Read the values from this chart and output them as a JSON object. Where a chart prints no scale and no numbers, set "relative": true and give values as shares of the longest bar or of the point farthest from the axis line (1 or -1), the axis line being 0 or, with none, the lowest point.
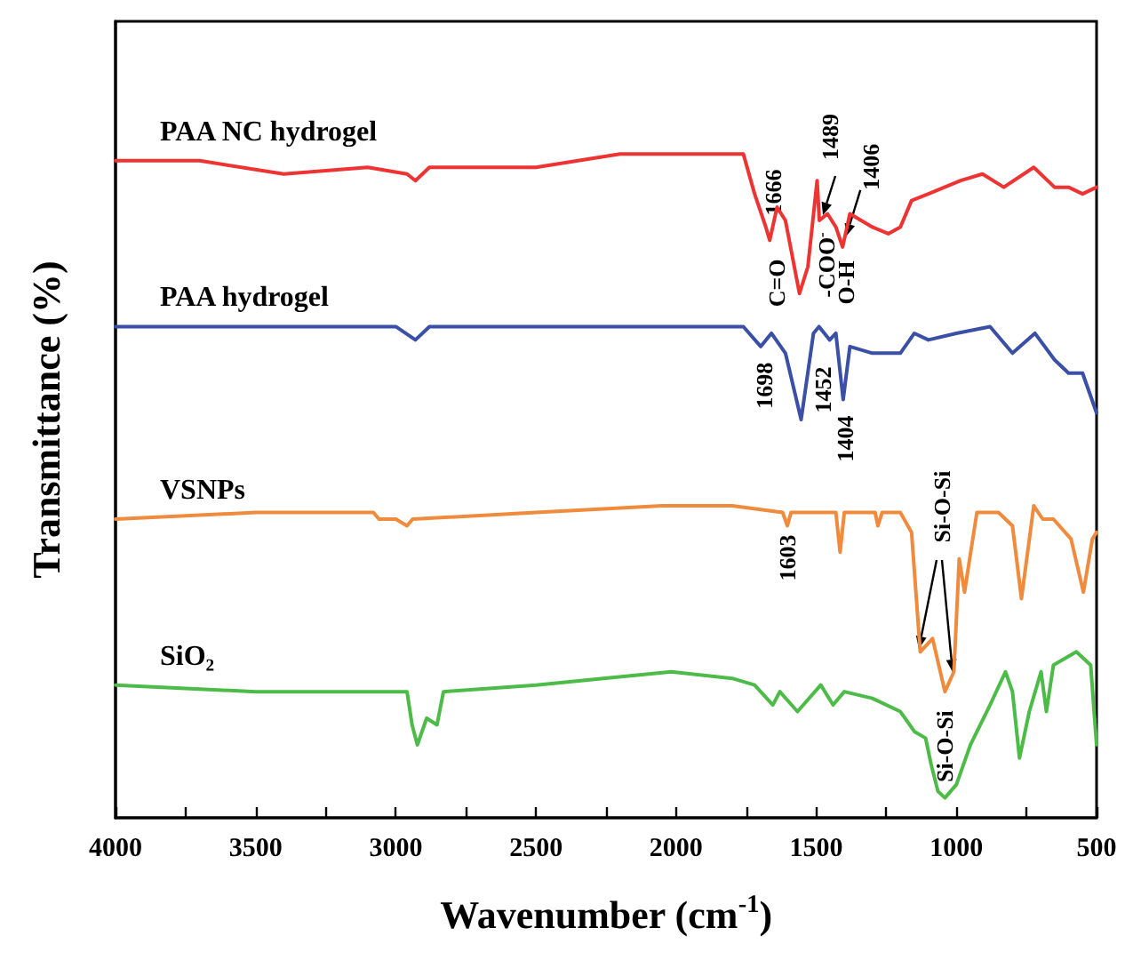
{
  "chart_data": {
    "type": "line",
    "relative": true,
    "xlabel": "Wavenumber (cm$^{-1}$)",
    "ylabel": "Transmittance (%)",
    "xlim": [
      4000,
      500
    ],
    "xticks": [
      4000,
      3500,
      3000,
      2500,
      2000,
      1500,
      1000,
      500
    ],
    "series": [
      {
        "name": "PAA NC hydrogel",
        "color": "#ee3333",
        "x": [
          4000,
          3700,
          3400,
          3100,
          2960,
          2930,
          2880,
          2500,
          2200,
          2000,
          1800,
          1760,
          1720,
          1680,
          1666,
          1640,
          1610,
          1560,
          1530,
          1497,
          1489,
          1460,
          1430,
          1406,
          1380,
          1300,
          1243,
          1200,
          1160,
          1100,
          985,
          907,
          831,
          724,
          650,
          600,
          550,
          500
        ],
        "values": [
          0.99,
          0.99,
          0.97,
          0.98,
          0.97,
          0.96,
          0.98,
          0.98,
          1.0,
          1.0,
          1.0,
          1.0,
          0.94,
          0.89,
          0.87,
          0.92,
          0.9,
          0.79,
          0.83,
          0.96,
          0.9,
          0.91,
          0.89,
          0.86,
          0.91,
          0.89,
          0.88,
          0.89,
          0.93,
          0.94,
          0.96,
          0.97,
          0.95,
          0.98,
          0.95,
          0.95,
          0.94,
          0.95
        ]
      },
      {
        "name": "PAA hydrogel",
        "color": "#3a4fa6",
        "x": [
          4000,
          3500,
          3000,
          2930,
          2880,
          2500,
          2000,
          1760,
          1698,
          1660,
          1610,
          1554,
          1510,
          1490,
          1452,
          1430,
          1404,
          1380,
          1300,
          1200,
          1150,
          1100,
          1000,
          880,
          800,
          720,
          650,
          600,
          550,
          500
        ],
        "values": [
          0.74,
          0.74,
          0.74,
          0.72,
          0.74,
          0.74,
          0.74,
          0.74,
          0.71,
          0.73,
          0.7,
          0.6,
          0.73,
          0.74,
          0.72,
          0.73,
          0.63,
          0.71,
          0.7,
          0.7,
          0.73,
          0.72,
          0.73,
          0.74,
          0.7,
          0.73,
          0.69,
          0.67,
          0.67,
          0.61
        ]
      },
      {
        "name": "VSNPs",
        "color": "#f08a3c",
        "x": [
          4000,
          3500,
          3080,
          3060,
          3000,
          2960,
          2940,
          2500,
          2050,
          1800,
          1620,
          1603,
          1590,
          1430,
          1415,
          1400,
          1290,
          1280,
          1265,
          1200,
          1160,
          1129,
          1085,
          1041,
          1009,
          990,
          971,
          927,
          850,
          800,
          768,
          724,
          692,
          654,
          591,
          547,
          515,
          500
        ],
        "values": [
          0.45,
          0.46,
          0.46,
          0.45,
          0.45,
          0.44,
          0.45,
          0.46,
          0.47,
          0.47,
          0.46,
          0.44,
          0.46,
          0.46,
          0.4,
          0.46,
          0.46,
          0.44,
          0.46,
          0.46,
          0.43,
          0.25,
          0.27,
          0.19,
          0.22,
          0.39,
          0.34,
          0.46,
          0.46,
          0.44,
          0.33,
          0.47,
          0.45,
          0.45,
          0.42,
          0.34,
          0.42,
          0.43
        ]
      },
      {
        "name": "SiO₂",
        "color": "#4cbb47",
        "x": [
          4000,
          3500,
          3000,
          2960,
          2942,
          2923,
          2890,
          2853,
          2830,
          2500,
          2017,
          1800,
          1720,
          1655,
          1630,
          1567,
          1484,
          1440,
          1400,
          1300,
          1200,
          1150,
          1110,
          1090,
          1066,
          1041,
          1000,
          950,
          880,
          825,
          800,
          775,
          740,
          698,
          679,
          654,
          572,
          521,
          500
        ],
        "values": [
          0.2,
          0.19,
          0.19,
          0.19,
          0.14,
          0.11,
          0.15,
          0.14,
          0.19,
          0.2,
          0.22,
          0.21,
          0.2,
          0.17,
          0.19,
          0.16,
          0.2,
          0.17,
          0.19,
          0.18,
          0.16,
          0.13,
          0.12,
          0.08,
          0.04,
          0.03,
          0.05,
          0.11,
          0.17,
          0.22,
          0.19,
          0.09,
          0.16,
          0.22,
          0.16,
          0.23,
          0.25,
          0.23,
          0.11
        ]
      }
    ],
    "annotations": [
      {
        "text": "1666",
        "x": 1666,
        "y": 0.87
      },
      {
        "text": "C=O",
        "x": 1666,
        "y": 0.87
      },
      {
        "text": "1489",
        "x": 1489,
        "y": 0.9
      },
      {
        "text": "-COO$^{-}$",
        "x": 1489,
        "y": 0.9
      },
      {
        "text": "1406",
        "x": 1406,
        "y": 0.86
      },
      {
        "text": "O-H",
        "x": 1406,
        "y": 0.86
      },
      {
        "text": "1698",
        "x": 1698,
        "y": 0.71
      },
      {
        "text": "1452",
        "x": 1452,
        "y": 0.72
      },
      {
        "text": "1404",
        "x": 1404,
        "y": 0.63
      },
      {
        "text": "1603",
        "x": 1603,
        "y": 0.44
      },
      "Si-O-Si",
      {
        "text": "Si-O-Si",
        "x": 1041,
        "y": 0.03
      }
    ]
  }
}
